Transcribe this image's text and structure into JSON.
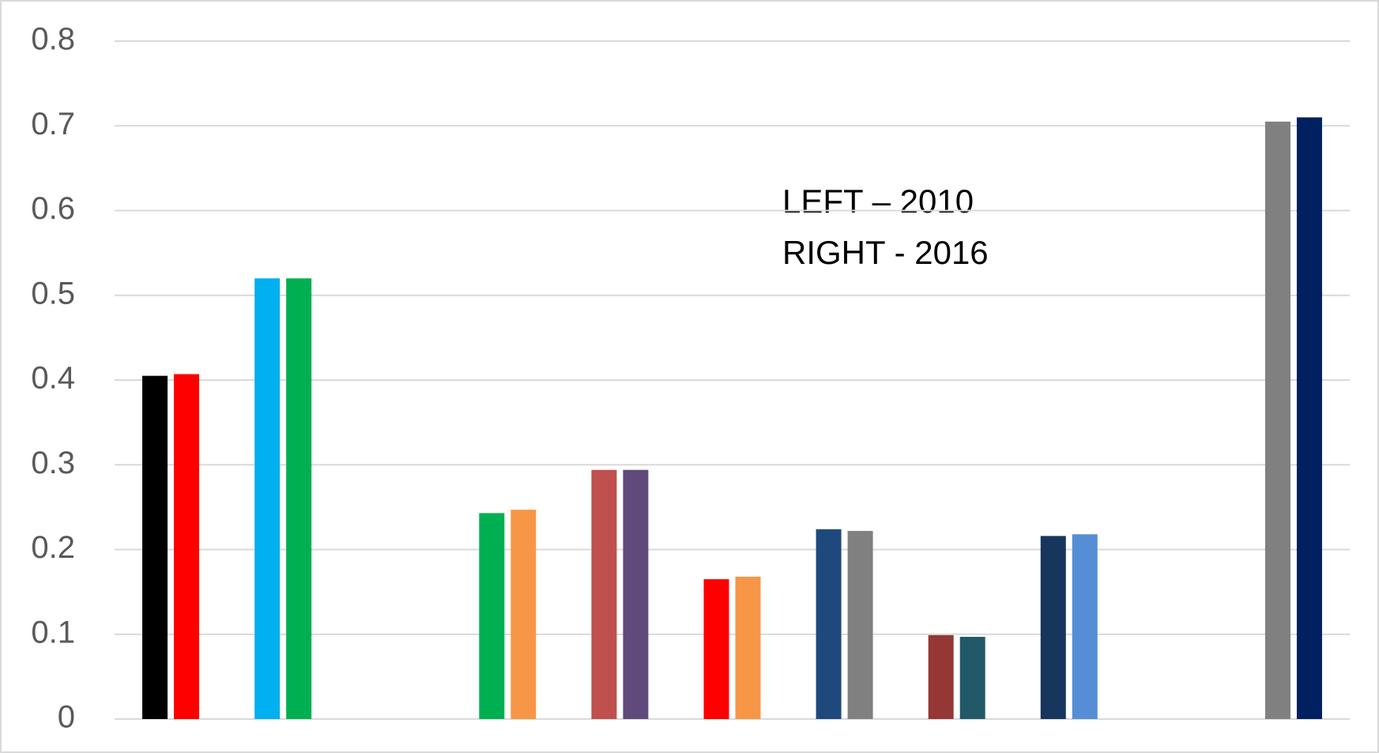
{
  "chart_data": {
    "type": "bar",
    "categories": [
      null,
      null,
      null,
      null,
      null,
      null,
      null,
      null,
      null,
      null,
      null
    ],
    "series": [
      {
        "colors": [
          "#000000",
          "#00b0f0",
          null,
          "#00b050",
          "#c0504d",
          "#ff0000",
          "#1f497d",
          "#953735",
          "#17365d",
          null,
          "#808080"
        ],
        "values": [
          0.405,
          0.52,
          null,
          0.243,
          0.294,
          0.165,
          0.224,
          0.099,
          0.216,
          null,
          0.705
        ]
      },
      {
        "colors": [
          "#ff0000",
          "#00b050",
          null,
          "#f79646",
          "#604a7b",
          "#f79646",
          "#808080",
          "#215968",
          "#558ed5",
          null,
          "#002060"
        ],
        "values": [
          0.407,
          0.52,
          null,
          0.247,
          0.294,
          0.168,
          0.222,
          0.097,
          0.218,
          null,
          0.71
        ]
      }
    ],
    "annotations": [
      "LEFT – 2010",
      "RIGHT - 2016"
    ],
    "ylim": [
      0,
      0.8
    ],
    "yticks": [
      0,
      0.1,
      0.2,
      0.3,
      0.4,
      0.5,
      0.6,
      0.7,
      0.8
    ],
    "grid": true
  }
}
